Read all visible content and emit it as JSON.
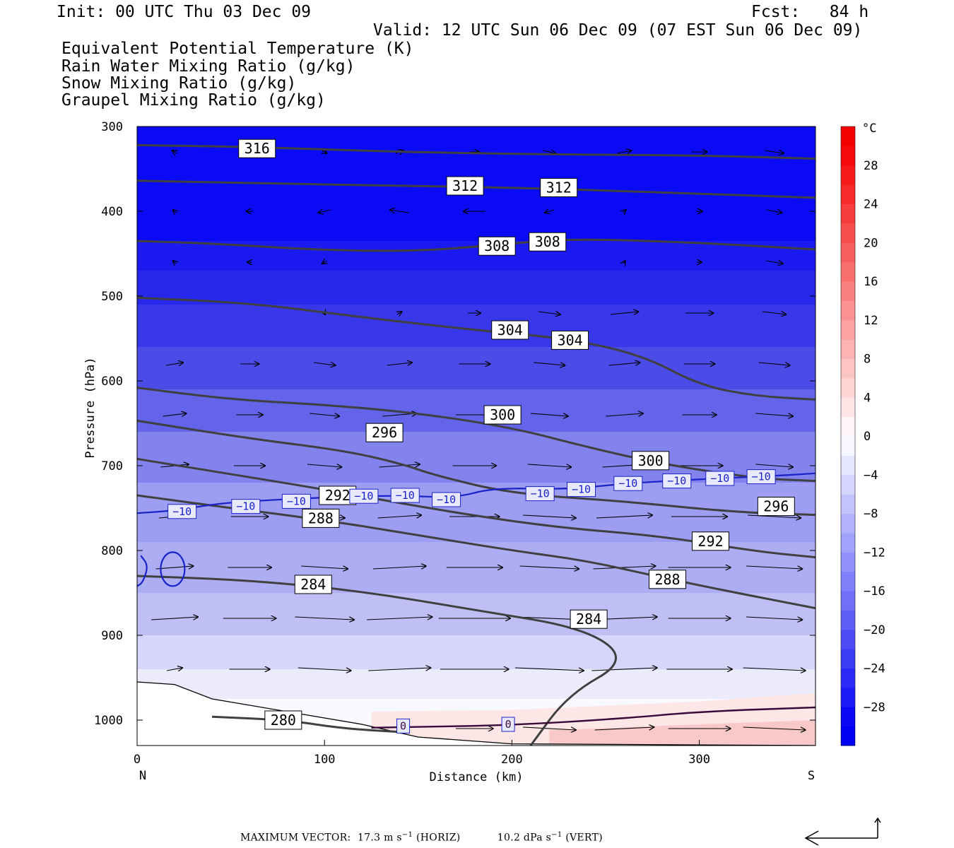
{
  "header": {
    "init": "Init: 00 UTC Thu 03 Dec 09",
    "fcst": "Fcst:   84 h",
    "valid": "Valid: 12 UTC Sun 06 Dec 09 (07 EST Sun 06 Dec 09)"
  },
  "legend": [
    {
      "label": "Equivalent Potential Temperature (K)",
      "color": "#4d4d4d"
    },
    {
      "label": "Rain Water Mixing Ratio (g/kg)",
      "color": "#1f7a1f"
    },
    {
      "label": "Snow Mixing Ratio (g/kg)",
      "color": "#e0895a"
    },
    {
      "label": "Graupel Mixing Ratio (g/kg)",
      "color": "#e87ae0"
    }
  ],
  "chart_data": {
    "type": "cross-section",
    "xlabel": "Distance (km)",
    "ylabel": "Pressure (hPa)",
    "x_ticks": [
      "0",
      "100",
      "200",
      "300"
    ],
    "x_tick_values": [
      0,
      100,
      200,
      300
    ],
    "xlim": [
      0,
      362
    ],
    "ylim": [
      300,
      1030
    ],
    "y_ticks": [
      "300",
      "400",
      "500",
      "600",
      "700",
      "800",
      "900",
      "1000"
    ],
    "y_tick_values": [
      300,
      400,
      500,
      600,
      700,
      800,
      900,
      1000
    ],
    "x_end_labels": {
      "left": "N",
      "right": "S"
    },
    "colorbar": {
      "unit": "°C",
      "levels": [
        -32,
        -30,
        -28,
        -26,
        -24,
        -22,
        -20,
        -18,
        -16,
        -14,
        -12,
        -10,
        -8,
        -6,
        -4,
        -2,
        0,
        2,
        4,
        6,
        8,
        10,
        12,
        14,
        16,
        18,
        20,
        22,
        24,
        26,
        28,
        30,
        32
      ],
      "tick_labels": [
        "28",
        "24",
        "20",
        "16",
        "12",
        "8",
        "4",
        "0",
        "−4",
        "−8",
        "−12",
        "−16",
        "−20",
        "−24",
        "−28"
      ],
      "tick_values": [
        28,
        24,
        20,
        16,
        12,
        8,
        4,
        0,
        -4,
        -8,
        -12,
        -16,
        -20,
        -24,
        -28
      ]
    },
    "theta_e_contours": [
      {
        "value": 316,
        "label": "316",
        "points": [
          [
            0,
            322
          ],
          [
            60,
            324
          ],
          [
            140,
            330
          ],
          [
            220,
            333
          ],
          [
            300,
            334
          ],
          [
            362,
            338
          ]
        ],
        "labels_at": [
          [
            64,
            326
          ]
        ]
      },
      {
        "value": 312,
        "label": "312",
        "points": [
          [
            0,
            364
          ],
          [
            70,
            367
          ],
          [
            140,
            370
          ],
          [
            200,
            372
          ],
          [
            270,
            377
          ],
          [
            362,
            384
          ]
        ],
        "labels_at": [
          [
            175,
            370
          ],
          [
            225,
            372
          ]
        ]
      },
      {
        "value": 308,
        "label": "308",
        "points": [
          [
            0,
            435
          ],
          [
            40,
            438
          ],
          [
            100,
            446
          ],
          [
            150,
            447
          ],
          [
            190,
            440
          ],
          [
            230,
            432
          ],
          [
            300,
            437
          ],
          [
            362,
            445
          ]
        ],
        "labels_at": [
          [
            192,
            441
          ],
          [
            219,
            436
          ]
        ]
      },
      {
        "value": 304,
        "label": "304",
        "points": [
          [
            0,
            502
          ],
          [
            60,
            508
          ],
          [
            120,
            525
          ],
          [
            180,
            540
          ],
          [
            230,
            550
          ],
          [
            270,
            570
          ],
          [
            300,
            605
          ],
          [
            330,
            618
          ],
          [
            362,
            622
          ]
        ],
        "labels_at": [
          [
            199,
            540
          ],
          [
            231,
            552
          ]
        ]
      },
      {
        "value": 300,
        "label": "300",
        "points": [
          [
            0,
            608
          ],
          [
            50,
            622
          ],
          [
            100,
            628
          ],
          [
            150,
            638
          ],
          [
            200,
            655
          ],
          [
            240,
            678
          ],
          [
            280,
            698
          ],
          [
            330,
            715
          ],
          [
            362,
            718
          ]
        ],
        "labels_at": [
          [
            195,
            640
          ],
          [
            274,
            694
          ]
        ]
      },
      {
        "value": 296,
        "label": "296",
        "points": [
          [
            0,
            647
          ],
          [
            60,
            668
          ],
          [
            110,
            682
          ],
          [
            140,
            697
          ],
          [
            160,
            712
          ],
          [
            200,
            733
          ],
          [
            260,
            742
          ],
          [
            320,
            755
          ],
          [
            362,
            758
          ]
        ],
        "labels_at": [
          [
            132,
            661
          ],
          [
            341,
            748
          ]
        ]
      },
      {
        "value": 292,
        "label": "292",
        "points": [
          [
            0,
            692
          ],
          [
            50,
            710
          ],
          [
            100,
            728
          ],
          [
            160,
            752
          ],
          [
            220,
            772
          ],
          [
            280,
            783
          ],
          [
            330,
            801
          ],
          [
            362,
            808
          ]
        ],
        "labels_at": [
          [
            107,
            735
          ],
          [
            306,
            789
          ]
        ]
      },
      {
        "value": 288,
        "label": "288",
        "points": [
          [
            0,
            735
          ],
          [
            50,
            750
          ],
          [
            100,
            764
          ],
          [
            150,
            782
          ],
          [
            200,
            800
          ],
          [
            240,
            812
          ],
          [
            280,
            832
          ],
          [
            320,
            850
          ],
          [
            362,
            868
          ]
        ],
        "labels_at": [
          [
            98,
            762
          ],
          [
            283,
            834
          ]
        ]
      },
      {
        "value": 284,
        "label": "284",
        "points": [
          [
            0,
            830
          ],
          [
            60,
            835
          ],
          [
            120,
            848
          ],
          [
            180,
            870
          ],
          [
            240,
            892
          ],
          [
            262,
            930
          ],
          [
            230,
            970
          ],
          [
            210,
            1030
          ]
        ],
        "labels_at": [
          [
            94,
            840
          ],
          [
            241,
            881
          ]
        ]
      },
      {
        "value": 280,
        "label": "280",
        "points": [
          [
            40,
            996
          ],
          [
            80,
            1000
          ],
          [
            110,
            1010
          ],
          [
            140,
            1014
          ]
        ],
        "labels_at": [
          [
            78,
            1000
          ]
        ]
      }
    ],
    "temp_contours": [
      {
        "value": -10,
        "label": "−10",
        "labels_at": [
          [
            24,
            754
          ],
          [
            58,
            748
          ],
          [
            85,
            742
          ],
          [
            121,
            736
          ],
          [
            143,
            735
          ],
          [
            165,
            740
          ],
          [
            215,
            733
          ],
          [
            237,
            728
          ],
          [
            262,
            721
          ],
          [
            288,
            718
          ],
          [
            311,
            715
          ],
          [
            333,
            713
          ]
        ]
      },
      {
        "value": 0,
        "label": "0",
        "labels_at": [
          [
            142,
            1007
          ],
          [
            198,
            1005
          ]
        ]
      }
    ],
    "footer": {
      "prefix": "MAXIMUM VECTOR:  17.3 m s",
      "exp1": "−1",
      "mid": " (HORIZ)           10.2 dPa s",
      "exp2": "−1",
      "suffix": " (VERT)"
    }
  }
}
